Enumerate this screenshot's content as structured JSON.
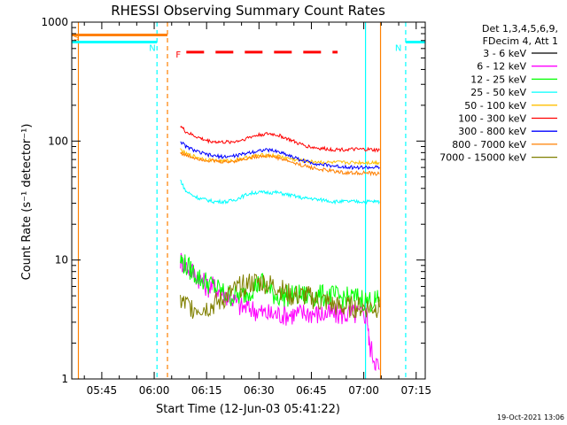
{
  "chart_data": {
    "type": "line",
    "title": "RHESSI Observing Summary Count Rates",
    "xlabel": "Start Time (12-Jun-03 05:41:22)",
    "ylabel": "Count Rate (s⁻¹ detector⁻¹)",
    "yscale": "log",
    "ylim": [
      1,
      1000
    ],
    "xlim_minutes": [
      -8.6,
      92.6
    ],
    "x_ticks": [
      {
        "label": "05:45",
        "minutes": 0
      },
      {
        "label": "06:00",
        "minutes": 15
      },
      {
        "label": "06:15",
        "minutes": 30
      },
      {
        "label": "06:30",
        "minutes": 45
      },
      {
        "label": "06:45",
        "minutes": 60
      },
      {
        "label": "07:00",
        "minutes": 75
      },
      {
        "label": "07:15",
        "minutes": 90
      }
    ],
    "y_ticks": [
      {
        "label": "1",
        "value": 1
      },
      {
        "label": "10",
        "value": 10
      },
      {
        "label": "100",
        "value": 100
      },
      {
        "label": "1000",
        "value": 1000
      }
    ],
    "legend_header": [
      "Det 1,3,4,5,6,9,",
      "FDecim 4, Att 1"
    ],
    "legend_position": "right",
    "series": [
      {
        "name": "3 - 6 keV",
        "color": "#000000",
        "minutes": [],
        "values": []
      },
      {
        "name": "6 - 12 keV",
        "color": "#ff00ff",
        "minutes": [
          22.5,
          24,
          26,
          28,
          30,
          32,
          34,
          36,
          38,
          40,
          42,
          44,
          46,
          48,
          50,
          52,
          54,
          56,
          58,
          60,
          62,
          64,
          66,
          68,
          70,
          72,
          74,
          76,
          76.5,
          78,
          79.5
        ],
        "values": [
          10,
          9,
          8,
          7,
          6,
          6,
          5.5,
          5,
          4.5,
          4,
          4,
          3.8,
          3.6,
          3.5,
          3.5,
          3.5,
          3.5,
          3.5,
          3.6,
          3.6,
          3.5,
          3.5,
          3.5,
          3.5,
          3.5,
          3.5,
          3.5,
          3.5,
          2,
          1.5,
          1.2
        ]
      },
      {
        "name": "12 - 25 keV",
        "color": "#00ff00",
        "minutes": [
          22.5,
          24,
          26,
          28,
          30,
          32,
          34,
          36,
          38,
          40,
          42,
          44,
          46,
          48,
          50,
          52,
          54,
          56,
          58,
          60,
          62,
          64,
          66,
          68,
          70,
          72,
          74,
          76,
          78,
          79.5
        ],
        "values": [
          10,
          9,
          8,
          7,
          6.5,
          6,
          5.5,
          5,
          5,
          5,
          5.5,
          6,
          6.5,
          5.5,
          5,
          5,
          5,
          5,
          5,
          5,
          5,
          5,
          5,
          4.8,
          4.8,
          4.8,
          4.8,
          4.5,
          4.5,
          4.5
        ]
      },
      {
        "name": "25 - 50 keV",
        "color": "#00ffff",
        "minutes": [
          22.5,
          24,
          26,
          28,
          30,
          32,
          34,
          36,
          38,
          40,
          42,
          44,
          46,
          48,
          50,
          52,
          54,
          56,
          58,
          60,
          62,
          64,
          66,
          68,
          70,
          72,
          74,
          76,
          78,
          79.5
        ],
        "values": [
          47,
          38,
          35,
          33,
          32,
          31,
          31,
          31,
          32,
          34,
          36,
          37,
          37,
          37,
          37,
          36,
          35,
          34,
          33,
          33,
          32,
          32,
          31,
          31,
          31,
          31,
          31,
          31,
          31,
          31
        ]
      },
      {
        "name": "50 - 100 keV",
        "color": "#ffbf00",
        "minutes": [
          22.5,
          24,
          26,
          28,
          30,
          32,
          34,
          36,
          38,
          40,
          42,
          44,
          46,
          48,
          50,
          52,
          54,
          56,
          58,
          60,
          62,
          64,
          66,
          68,
          70,
          72,
          74,
          76,
          78,
          79.5
        ],
        "values": [
          85,
          78,
          75,
          72,
          70,
          69,
          68,
          68,
          69,
          71,
          73,
          75,
          76,
          76,
          75,
          73,
          71,
          69,
          68,
          67,
          67,
          66,
          66,
          66,
          66,
          66,
          66,
          66,
          66,
          66
        ]
      },
      {
        "name": "100 - 300 keV",
        "color": "#ff0000",
        "minutes": [
          22.5,
          24,
          26,
          28,
          30,
          32,
          34,
          36,
          38,
          40,
          42,
          44,
          46,
          48,
          50,
          52,
          54,
          56,
          58,
          60,
          62,
          64,
          66,
          68,
          70,
          72,
          74,
          76,
          78,
          79.5
        ],
        "values": [
          135,
          120,
          112,
          106,
          101,
          99,
          98,
          98,
          99,
          102,
          107,
          111,
          114,
          115,
          113,
          108,
          102,
          96,
          92,
          89,
          87,
          86,
          85,
          85,
          85,
          85,
          85,
          85,
          84,
          84
        ]
      },
      {
        "name": "300 - 800 keV",
        "color": "#0000ff",
        "minutes": [
          22.5,
          24,
          26,
          28,
          30,
          32,
          34,
          36,
          38,
          40,
          42,
          44,
          46,
          48,
          50,
          52,
          54,
          56,
          58,
          60,
          62,
          64,
          66,
          68,
          70,
          72,
          74,
          76,
          78,
          79.5
        ],
        "values": [
          100,
          90,
          85,
          80,
          77,
          75,
          74,
          74,
          75,
          77,
          80,
          82,
          84,
          84,
          82,
          79,
          75,
          71,
          68,
          66,
          64,
          63,
          62,
          61,
          61,
          60,
          60,
          60,
          60,
          60
        ]
      },
      {
        "name": "800 - 7000 keV",
        "color": "#ff8000",
        "minutes": [
          22.5,
          24,
          26,
          28,
          30,
          32,
          34,
          36,
          38,
          40,
          42,
          44,
          46,
          48,
          50,
          52,
          54,
          56,
          58,
          60,
          62,
          64,
          66,
          68,
          70,
          72,
          74,
          76,
          78,
          79.5
        ],
        "values": [
          80,
          76,
          73,
          71,
          69,
          68,
          67,
          67,
          68,
          70,
          72,
          74,
          75,
          75,
          73,
          70,
          67,
          64,
          62,
          60,
          58,
          57,
          56,
          55,
          54,
          54,
          54,
          54,
          53,
          53
        ]
      },
      {
        "name": "7000 - 15000 keV",
        "color": "#808000",
        "minutes": [
          22.5,
          24,
          26,
          28,
          30,
          32,
          34,
          36,
          38,
          40,
          42,
          44,
          46,
          48,
          50,
          52,
          54,
          56,
          58,
          60,
          62,
          64,
          66,
          68,
          70,
          72,
          74,
          76,
          78,
          79.5
        ],
        "values": [
          4.5,
          4.2,
          4,
          4,
          4,
          4.2,
          4.5,
          5,
          5.5,
          6,
          6.3,
          6.5,
          6.5,
          6.2,
          6,
          5.5,
          5,
          5,
          5,
          4.8,
          4.5,
          4.5,
          4.2,
          4,
          4,
          4,
          4,
          4,
          4,
          4
        ]
      }
    ],
    "flags": [
      {
        "label": "S",
        "color": "#ff8000",
        "start_minutes": -8.6,
        "end_minutes": 18.8,
        "level": 780
      },
      {
        "label": "N",
        "color": "#00ffff",
        "start_minutes": -8.6,
        "end_minutes": 15.8,
        "level": 680
      },
      {
        "label": "N",
        "color": "#00ffff",
        "start_minutes": 87.0,
        "end_minutes": 92.6,
        "level": 680
      },
      {
        "label": "F",
        "color": "#ff0000",
        "start_minutes": 24.2,
        "end_minutes": 67.5,
        "level": 560
      }
    ],
    "vertical_markers": [
      {
        "minutes": -6.7,
        "color": "#ff8000",
        "style": "solid"
      },
      {
        "minutes": 15.8,
        "color": "#00ffff",
        "style": "dashed"
      },
      {
        "minutes": 18.8,
        "color": "#ff8000",
        "style": "dashed"
      },
      {
        "minutes": 75.5,
        "color": "#00ffff",
        "style": "solid"
      },
      {
        "minutes": 79.8,
        "color": "#ff8000",
        "style": "solid"
      },
      {
        "minutes": 87.0,
        "color": "#00ffff",
        "style": "dashed"
      }
    ],
    "timestamp": "19-Oct-2021 13:06"
  }
}
